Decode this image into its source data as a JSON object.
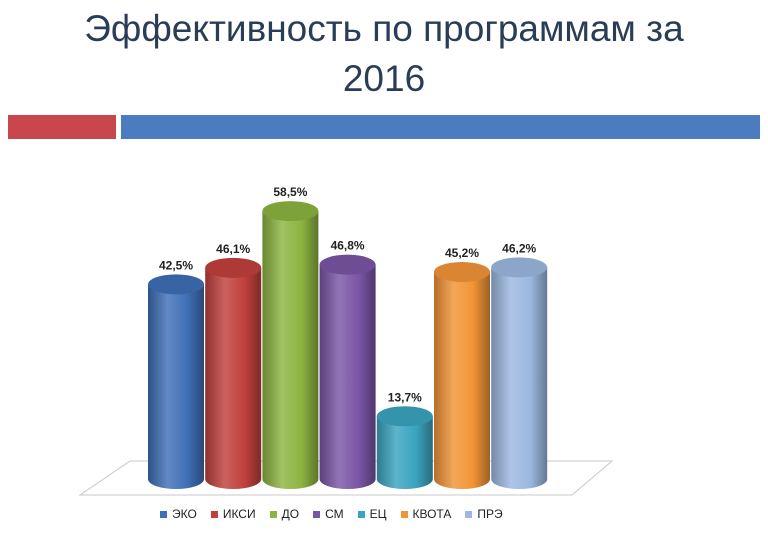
{
  "title": {
    "line1": "Эффективность по программам за",
    "line2": "2016"
  },
  "colors": {
    "accent_red": "#c9474c",
    "accent_blue": "#4a7cbf"
  },
  "chart_data": {
    "type": "bar",
    "style": "3d-cylinder",
    "categories": [
      "ЭКО",
      "ИКСИ",
      "ДО",
      "СМ",
      "ЕЦ",
      "КВОТА",
      "ПРЭ"
    ],
    "values": [
      42.5,
      46.1,
      58.5,
      46.8,
      13.7,
      45.2,
      46.2
    ],
    "data_labels": [
      "42,5%",
      "46,1%",
      "58,5%",
      "46,8%",
      "13,7%",
      "45,2%",
      "46,2%"
    ],
    "colors": [
      "#3f6fb6",
      "#c0403c",
      "#8cb440",
      "#7a55a6",
      "#3aa4bf",
      "#f29436",
      "#9bb8e0"
    ],
    "legend_position": "bottom",
    "grid": false
  }
}
